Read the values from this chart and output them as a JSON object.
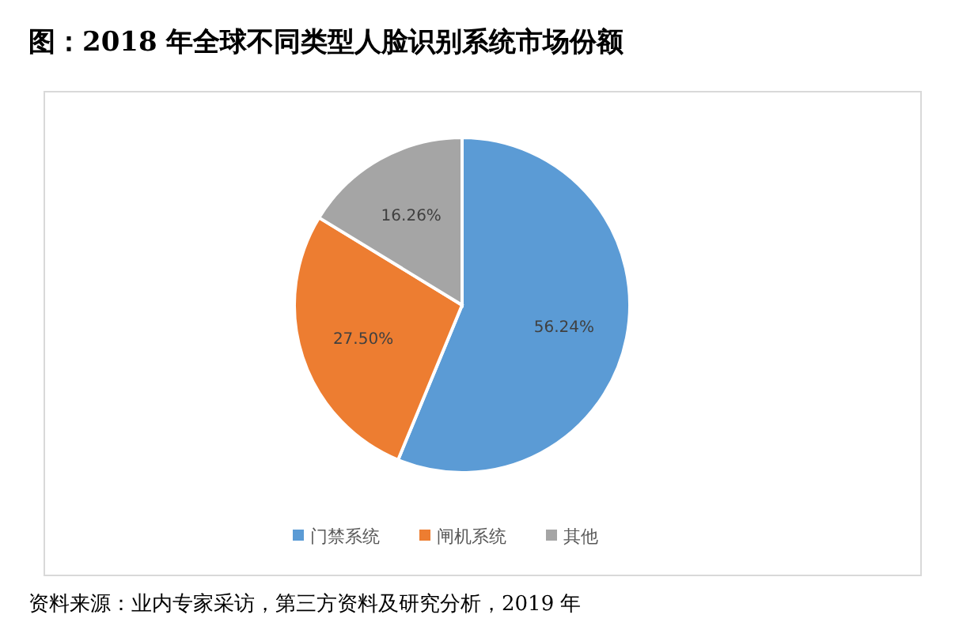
{
  "chart_data": {
    "type": "pie",
    "title": "图：2018 年全球不同类型人脸识别系统市场份额",
    "categories": [
      "门禁系统",
      "闸机系统",
      "其他"
    ],
    "values": [
      56.24,
      27.5,
      16.26
    ],
    "colors": [
      "#5b9bd5",
      "#ed7d31",
      "#a5a5a5"
    ],
    "value_labels": [
      "56.24%",
      "27.50%",
      "16.26%"
    ],
    "legend": "bottom",
    "annotations": [
      "资料来源：业内专家采访，第三方资料及研究分析，2019 年"
    ]
  }
}
